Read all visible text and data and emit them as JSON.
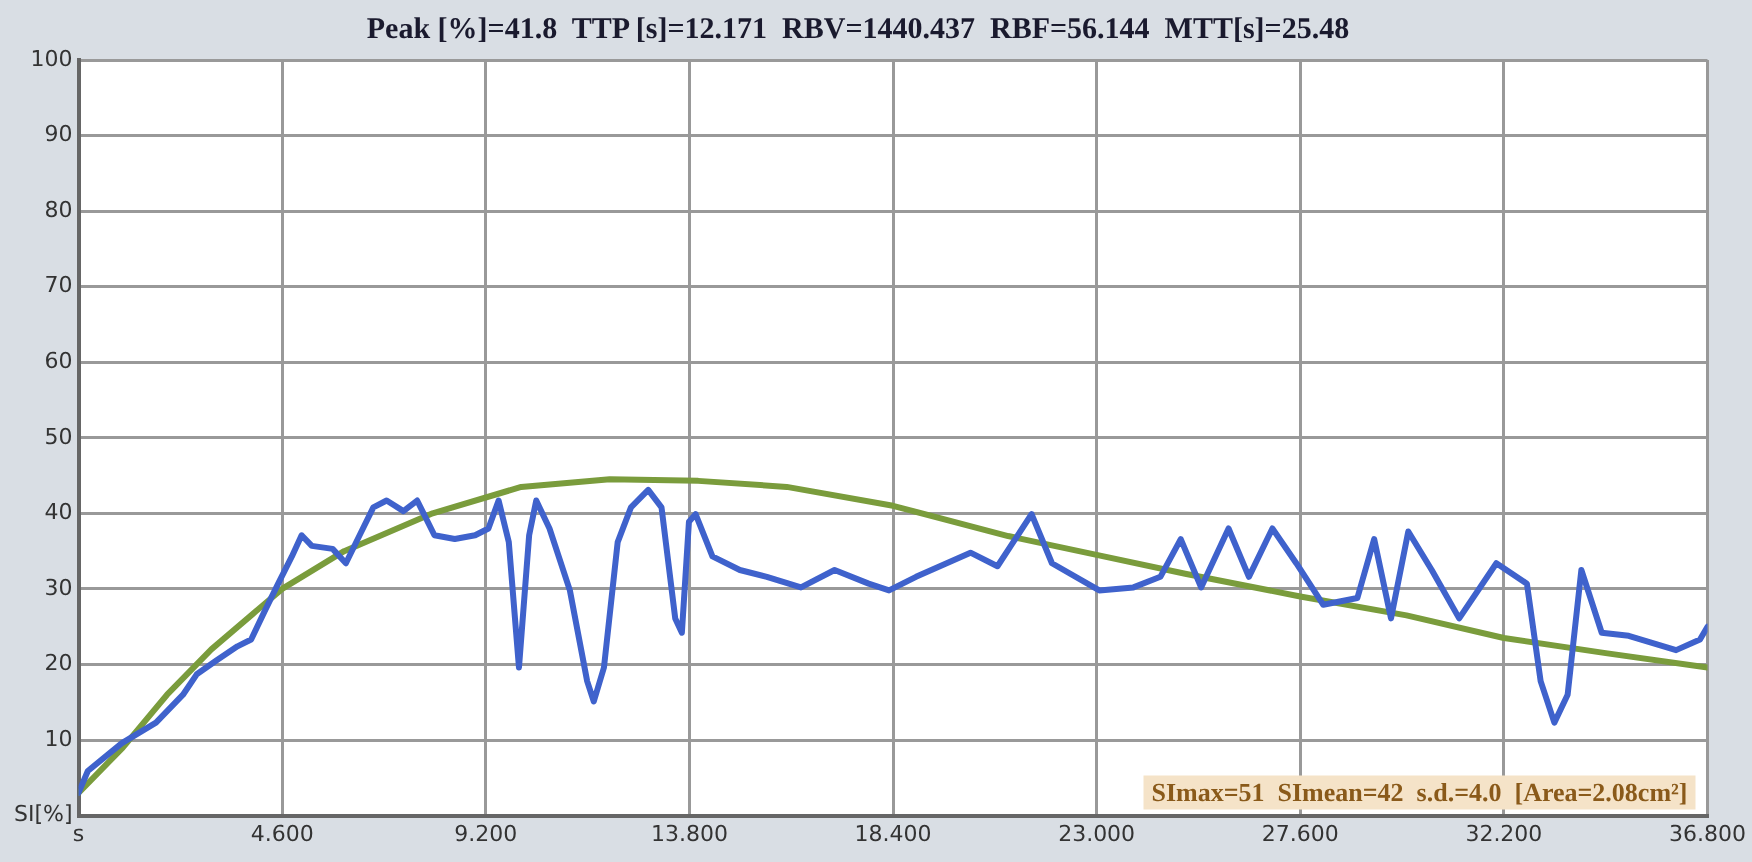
{
  "chart_data": {
    "type": "line",
    "title": "Peak [%]=41.8  TTP [s]=12.171  RBV=1440.437  RBF=56.144  MTT[s]=25.48",
    "annotations": [
      "SImax=51  SImean=42  s.d.=4.0  [Area=2.08cm²]"
    ],
    "xlim": [
      0,
      36.8
    ],
    "ylim": [
      0,
      100
    ],
    "xticks": [
      {
        "value": 0,
        "label": "s"
      },
      {
        "value": 4.6,
        "label": "4.600"
      },
      {
        "value": 9.2,
        "label": "9.200"
      },
      {
        "value": 13.8,
        "label": "13.800"
      },
      {
        "value": 18.4,
        "label": "18.400"
      },
      {
        "value": 23,
        "label": "23.000"
      },
      {
        "value": 27.6,
        "label": "27.600"
      },
      {
        "value": 32.2,
        "label": "32.200"
      },
      {
        "value": 36.8,
        "label": "36.800"
      }
    ],
    "yticks": [
      {
        "value": 0,
        "label": "SI[%]"
      },
      10,
      20,
      30,
      40,
      50,
      60,
      70,
      80,
      90,
      100
    ],
    "grid": true,
    "legend": false,
    "marker": "none",
    "line_style": "solid",
    "series": [
      {
        "color": "#3f62cc",
        "x": [
          0,
          0.21,
          0.98,
          1.75,
          2.36,
          2.67,
          3.13,
          3.59,
          3.9,
          4.2,
          4.51,
          4.82,
          5.04,
          5.27,
          5.74,
          6.04,
          6.35,
          6.66,
          6.96,
          7.34,
          7.65,
          8.04,
          8.5,
          8.96,
          9.26,
          9.49,
          9.72,
          9.95,
          10.18,
          10.34,
          10.64,
          11.1,
          11.49,
          11.64,
          11.87,
          12.18,
          12.48,
          12.87,
          13.17,
          13.48,
          13.63,
          13.79,
          13.94,
          14.32,
          14.94,
          15.55,
          16.32,
          17.08,
          17.85,
          18.31,
          18.92,
          20.15,
          20.76,
          21.53,
          21.99,
          23.06,
          23.83,
          24.44,
          24.9,
          25.36,
          25.98,
          26.44,
          26.97,
          27.51,
          28.12,
          28.89,
          29.27,
          29.65,
          30.04,
          30.57,
          31.19,
          32.03,
          32.72,
          33.03,
          33.34,
          33.64,
          33.95,
          34.41,
          35.02,
          36.09,
          36.63,
          36.8
        ],
        "values": [
          3,
          5.9,
          9.6,
          12.3,
          16,
          18.7,
          20.6,
          22.4,
          23.3,
          27,
          30.7,
          34.3,
          37.1,
          35.7,
          35.3,
          33.4,
          37.1,
          40.8,
          41.7,
          40.3,
          41.7,
          37.1,
          36.6,
          37.1,
          38,
          41.7,
          36.2,
          19.6,
          37.1,
          41.7,
          38,
          29.8,
          17.8,
          15.1,
          19.6,
          36.2,
          40.8,
          43.1,
          40.8,
          26.1,
          24.2,
          38.9,
          39.9,
          34.3,
          32.5,
          31.6,
          30.2,
          32.5,
          30.7,
          29.8,
          31.6,
          34.8,
          33,
          39.9,
          33.4,
          29.8,
          30.2,
          31.6,
          36.6,
          30.2,
          38,
          31.6,
          38,
          33.4,
          27.9,
          28.8,
          36.6,
          26.1,
          37.6,
          32.5,
          26.1,
          33.4,
          30.7,
          17.8,
          12.3,
          16,
          32.5,
          24.2,
          23.8,
          21.9,
          23.3,
          25
        ]
      },
      {
        "color": "#7a9c3c",
        "x": [
          0,
          1,
          2,
          3,
          4,
          4.6,
          6,
          8,
          10,
          12,
          14,
          16,
          18.4,
          21,
          23,
          25,
          27.6,
          30,
          32.2,
          34.5,
          36.8
        ],
        "values": [
          3,
          9,
          16,
          22,
          27,
          30,
          35,
          40,
          43.5,
          44.5,
          44.3,
          43.5,
          41,
          37,
          34.5,
          32,
          29,
          26.5,
          23.5,
          21.5,
          19.6
        ]
      }
    ]
  }
}
